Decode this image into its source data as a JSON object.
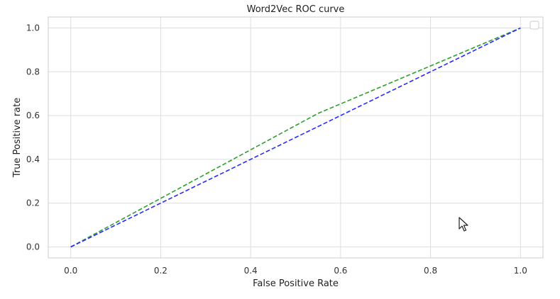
{
  "chart_data": {
    "type": "line",
    "title": "Word2Vec ROC curve",
    "xlabel": "False Positive Rate",
    "ylabel": "True Positive rate",
    "xlim": [
      -0.05,
      1.05
    ],
    "ylim": [
      -0.05,
      1.05
    ],
    "xticks": [
      0.0,
      0.2,
      0.4,
      0.6,
      0.8,
      1.0
    ],
    "yticks": [
      0.0,
      0.2,
      0.4,
      0.6,
      0.8,
      1.0
    ],
    "xtick_labels": [
      "0.0",
      "0.2",
      "0.4",
      "0.6",
      "0.8",
      "1.0"
    ],
    "ytick_labels": [
      "0.0",
      "0.2",
      "0.4",
      "0.6",
      "0.8",
      "1.0"
    ],
    "grid": true,
    "legend_placement": "top-right",
    "series": [
      {
        "style": "dashed",
        "color": "#2ca02c",
        "x": [
          0.0,
          0.55,
          1.0
        ],
        "y": [
          0.0,
          0.61,
          1.0
        ]
      },
      {
        "style": "dashed",
        "color": "#2a2aff",
        "x": [
          0.0,
          1.0
        ],
        "y": [
          0.0,
          1.0
        ]
      }
    ]
  },
  "icons": {
    "cursor": "mouse-pointer-icon"
  }
}
